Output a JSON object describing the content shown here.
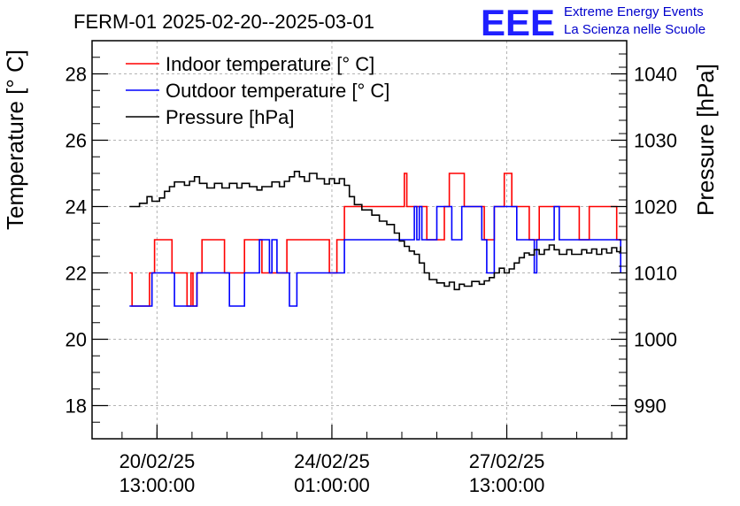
{
  "header": {
    "title": "FERM-01 2025-02-20--2025-03-01",
    "logo_text": "EEE",
    "logo_line1": "Extreme Energy Events",
    "logo_line2": "La Scienza nelle Scuole"
  },
  "chart_data": {
    "type": "line",
    "title": "FERM-01 2025-02-20--2025-03-01",
    "ylabel": "Temperature [° C]",
    "y2label": "Pressure [hPa]",
    "xlabel": "",
    "ylim": [
      17,
      29
    ],
    "y2lim": [
      985,
      1045
    ],
    "xlim_days": [
      -1.3,
      9.4
    ],
    "grid": true,
    "legend_position": "top-left",
    "x_tick_labels": [
      {
        "at_day": 0,
        "line1": "20/02/25",
        "line2": "13:00:00"
      },
      {
        "at_day": 3.5,
        "line1": "24/02/25",
        "line2": "01:00:00"
      },
      {
        "at_day": 7,
        "line1": "27/02/25",
        "line2": "13:00:00"
      }
    ],
    "y_ticks": [
      18,
      20,
      22,
      24,
      26,
      28
    ],
    "y2_ticks": [
      990,
      1000,
      1010,
      1020,
      1030,
      1040
    ],
    "colors": {
      "indoor": "#ff0000",
      "outdoor": "#0000ff",
      "pressure": "#000000",
      "grid": "#b4b4b4"
    },
    "series": [
      {
        "name": "Indoor temperature [° C]",
        "axis": "left",
        "color": "#ff0000",
        "points": [
          [
            -0.55,
            22
          ],
          [
            -0.5,
            22
          ],
          [
            -0.5,
            21
          ],
          [
            -0.15,
            21
          ],
          [
            -0.15,
            22
          ],
          [
            -0.05,
            22
          ],
          [
            -0.05,
            23
          ],
          [
            0.3,
            23
          ],
          [
            0.3,
            22
          ],
          [
            0.6,
            22
          ],
          [
            0.6,
            21
          ],
          [
            0.68,
            21
          ],
          [
            0.68,
            22
          ],
          [
            0.72,
            22
          ],
          [
            0.72,
            21
          ],
          [
            0.8,
            21
          ],
          [
            0.8,
            22
          ],
          [
            0.9,
            22
          ],
          [
            0.9,
            23
          ],
          [
            1.35,
            23
          ],
          [
            1.35,
            22
          ],
          [
            1.75,
            22
          ],
          [
            1.75,
            23
          ],
          [
            2.1,
            23
          ],
          [
            2.1,
            22
          ],
          [
            2.6,
            22
          ],
          [
            2.6,
            23
          ],
          [
            3.45,
            23
          ],
          [
            3.45,
            22
          ],
          [
            3.6,
            22
          ],
          [
            3.6,
            23
          ],
          [
            3.75,
            23
          ],
          [
            3.75,
            24
          ],
          [
            4.95,
            24
          ],
          [
            4.95,
            25
          ],
          [
            5.0,
            25
          ],
          [
            5.0,
            24
          ],
          [
            5.4,
            24
          ],
          [
            5.4,
            23
          ],
          [
            5.75,
            23
          ],
          [
            5.75,
            24
          ],
          [
            5.85,
            24
          ],
          [
            5.85,
            25
          ],
          [
            6.15,
            25
          ],
          [
            6.15,
            24
          ],
          [
            6.55,
            24
          ],
          [
            6.55,
            23
          ],
          [
            6.75,
            23
          ],
          [
            6.75,
            24
          ],
          [
            6.95,
            24
          ],
          [
            6.95,
            25
          ],
          [
            7.1,
            25
          ],
          [
            7.1,
            24
          ],
          [
            7.45,
            24
          ],
          [
            7.45,
            23
          ],
          [
            7.65,
            23
          ],
          [
            7.65,
            24
          ],
          [
            8.45,
            24
          ],
          [
            8.45,
            23
          ],
          [
            8.65,
            23
          ],
          [
            8.65,
            24
          ],
          [
            9.2,
            24
          ],
          [
            9.2,
            23
          ],
          [
            9.28,
            23
          ]
        ]
      },
      {
        "name": "Outdoor temperature [° C]",
        "axis": "left",
        "color": "#0000ff",
        "points": [
          [
            -0.55,
            21
          ],
          [
            -0.1,
            21
          ],
          [
            -0.1,
            22
          ],
          [
            0.35,
            22
          ],
          [
            0.35,
            21
          ],
          [
            0.8,
            21
          ],
          [
            0.8,
            22
          ],
          [
            1.45,
            22
          ],
          [
            1.45,
            21
          ],
          [
            1.75,
            21
          ],
          [
            1.75,
            22
          ],
          [
            2.05,
            22
          ],
          [
            2.05,
            23
          ],
          [
            2.25,
            23
          ],
          [
            2.25,
            22
          ],
          [
            2.3,
            22
          ],
          [
            2.3,
            23
          ],
          [
            2.4,
            23
          ],
          [
            2.4,
            22
          ],
          [
            2.65,
            22
          ],
          [
            2.65,
            21
          ],
          [
            2.8,
            21
          ],
          [
            2.8,
            22
          ],
          [
            3.75,
            22
          ],
          [
            3.75,
            23
          ],
          [
            5.15,
            23
          ],
          [
            5.15,
            24
          ],
          [
            5.2,
            24
          ],
          [
            5.2,
            23
          ],
          [
            5.25,
            23
          ],
          [
            5.25,
            24
          ],
          [
            5.3,
            24
          ],
          [
            5.3,
            23
          ],
          [
            5.6,
            23
          ],
          [
            5.6,
            24
          ],
          [
            5.9,
            24
          ],
          [
            5.9,
            23
          ],
          [
            6.1,
            23
          ],
          [
            6.1,
            24
          ],
          [
            6.5,
            24
          ],
          [
            6.5,
            23
          ],
          [
            6.6,
            23
          ],
          [
            6.6,
            22
          ],
          [
            6.75,
            22
          ],
          [
            6.75,
            24
          ],
          [
            7.2,
            24
          ],
          [
            7.2,
            23
          ],
          [
            7.55,
            23
          ],
          [
            7.55,
            22
          ],
          [
            7.6,
            22
          ],
          [
            7.6,
            23
          ],
          [
            7.95,
            23
          ],
          [
            7.95,
            24
          ],
          [
            8.05,
            24
          ],
          [
            8.05,
            23
          ],
          [
            9.28,
            23
          ],
          [
            9.28,
            22
          ]
        ]
      },
      {
        "name": "Pressure [hPa]",
        "axis": "right",
        "color": "#000000",
        "points": [
          [
            -0.55,
            1020
          ],
          [
            -0.35,
            1020
          ],
          [
            -0.35,
            1020.5
          ],
          [
            -0.2,
            1020.5
          ],
          [
            -0.2,
            1021.5
          ],
          [
            -0.1,
            1021.5
          ],
          [
            -0.1,
            1020.8
          ],
          [
            0.05,
            1020.8
          ],
          [
            0.05,
            1021.3
          ],
          [
            0.15,
            1021.3
          ],
          [
            0.15,
            1022.3
          ],
          [
            0.25,
            1022.3
          ],
          [
            0.25,
            1023
          ],
          [
            0.35,
            1023
          ],
          [
            0.35,
            1023.7
          ],
          [
            0.55,
            1023.7
          ],
          [
            0.55,
            1023.2
          ],
          [
            0.65,
            1023.2
          ],
          [
            0.65,
            1023.8
          ],
          [
            0.75,
            1023.8
          ],
          [
            0.75,
            1024.5
          ],
          [
            0.85,
            1024.5
          ],
          [
            0.85,
            1023.5
          ],
          [
            1.0,
            1023.5
          ],
          [
            1.0,
            1022.8
          ],
          [
            1.15,
            1022.8
          ],
          [
            1.15,
            1023.5
          ],
          [
            1.3,
            1023.5
          ],
          [
            1.3,
            1022.8
          ],
          [
            1.45,
            1022.8
          ],
          [
            1.45,
            1023.5
          ],
          [
            1.6,
            1023.5
          ],
          [
            1.6,
            1022.8
          ],
          [
            1.7,
            1022.8
          ],
          [
            1.7,
            1023.5
          ],
          [
            1.85,
            1023.5
          ],
          [
            1.85,
            1023
          ],
          [
            2.0,
            1023
          ],
          [
            2.0,
            1022.5
          ],
          [
            2.1,
            1022.5
          ],
          [
            2.1,
            1023
          ],
          [
            2.3,
            1023
          ],
          [
            2.3,
            1023.7
          ],
          [
            2.45,
            1023.7
          ],
          [
            2.45,
            1023
          ],
          [
            2.55,
            1023
          ],
          [
            2.55,
            1023.8
          ],
          [
            2.65,
            1023.8
          ],
          [
            2.65,
            1024.5
          ],
          [
            2.75,
            1024.5
          ],
          [
            2.75,
            1025.3
          ],
          [
            2.85,
            1025.3
          ],
          [
            2.85,
            1024.5
          ],
          [
            2.95,
            1024.5
          ],
          [
            2.95,
            1023.8
          ],
          [
            3.05,
            1023.8
          ],
          [
            3.05,
            1025
          ],
          [
            3.2,
            1025
          ],
          [
            3.2,
            1024.2
          ],
          [
            3.35,
            1024.2
          ],
          [
            3.35,
            1023.4
          ],
          [
            3.45,
            1023.4
          ],
          [
            3.45,
            1024.2
          ],
          [
            3.55,
            1024.2
          ],
          [
            3.55,
            1023.5
          ],
          [
            3.65,
            1023.5
          ],
          [
            3.65,
            1024.2
          ],
          [
            3.75,
            1024.2
          ],
          [
            3.75,
            1023.2
          ],
          [
            3.85,
            1023.2
          ],
          [
            3.85,
            1021.5
          ],
          [
            3.95,
            1021.5
          ],
          [
            3.95,
            1020.3
          ],
          [
            4.1,
            1020.3
          ],
          [
            4.1,
            1019.5
          ],
          [
            4.3,
            1019.5
          ],
          [
            4.3,
            1018.7
          ],
          [
            4.45,
            1018.7
          ],
          [
            4.45,
            1017.8
          ],
          [
            4.6,
            1017.8
          ],
          [
            4.6,
            1017.3
          ],
          [
            4.75,
            1017.3
          ],
          [
            4.75,
            1016
          ],
          [
            4.85,
            1016
          ],
          [
            4.85,
            1014.8
          ],
          [
            4.95,
            1014.8
          ],
          [
            4.95,
            1014
          ],
          [
            5.05,
            1014
          ],
          [
            5.05,
            1013.3
          ],
          [
            5.15,
            1013.3
          ],
          [
            5.15,
            1012.8
          ],
          [
            5.25,
            1012.8
          ],
          [
            5.25,
            1011.5
          ],
          [
            5.35,
            1011.5
          ],
          [
            5.35,
            1010
          ],
          [
            5.45,
            1010
          ],
          [
            5.45,
            1009
          ],
          [
            5.6,
            1009
          ],
          [
            5.6,
            1008.5
          ],
          [
            5.75,
            1008.5
          ],
          [
            5.75,
            1008
          ],
          [
            5.85,
            1008
          ],
          [
            5.85,
            1008.6
          ],
          [
            5.95,
            1008.6
          ],
          [
            5.95,
            1007.5
          ],
          [
            6.05,
            1007.5
          ],
          [
            6.05,
            1008.3
          ],
          [
            6.15,
            1008.3
          ],
          [
            6.15,
            1008
          ],
          [
            6.3,
            1008
          ],
          [
            6.3,
            1008.7
          ],
          [
            6.45,
            1008.7
          ],
          [
            6.45,
            1008.3
          ],
          [
            6.55,
            1008.3
          ],
          [
            6.55,
            1008.8
          ],
          [
            6.65,
            1008.8
          ],
          [
            6.65,
            1009.3
          ],
          [
            6.75,
            1009.3
          ],
          [
            6.75,
            1010
          ],
          [
            6.85,
            1010
          ],
          [
            6.85,
            1010.7
          ],
          [
            6.95,
            1010.7
          ],
          [
            6.95,
            1010
          ],
          [
            7.05,
            1010
          ],
          [
            7.05,
            1010.6
          ],
          [
            7.15,
            1010.6
          ],
          [
            7.15,
            1011.5
          ],
          [
            7.25,
            1011.5
          ],
          [
            7.25,
            1012.3
          ],
          [
            7.35,
            1012.3
          ],
          [
            7.35,
            1013
          ],
          [
            7.45,
            1013
          ],
          [
            7.45,
            1012.7
          ],
          [
            7.55,
            1012.7
          ],
          [
            7.55,
            1013.5
          ],
          [
            7.65,
            1013.5
          ],
          [
            7.65,
            1012.8
          ],
          [
            7.75,
            1012.8
          ],
          [
            7.75,
            1013.5
          ],
          [
            7.85,
            1013.5
          ],
          [
            7.85,
            1014.2
          ],
          [
            7.95,
            1014.2
          ],
          [
            7.95,
            1013.5
          ],
          [
            8.05,
            1013.5
          ],
          [
            8.05,
            1012.8
          ],
          [
            8.2,
            1012.8
          ],
          [
            8.2,
            1013.5
          ],
          [
            8.3,
            1013.5
          ],
          [
            8.3,
            1012.8
          ],
          [
            8.5,
            1012.8
          ],
          [
            8.5,
            1013.5
          ],
          [
            8.6,
            1013.5
          ],
          [
            8.6,
            1013
          ],
          [
            8.7,
            1013
          ],
          [
            8.7,
            1013.6
          ],
          [
            8.8,
            1013.6
          ],
          [
            8.8,
            1012.8
          ],
          [
            8.9,
            1012.8
          ],
          [
            8.9,
            1013.6
          ],
          [
            9.0,
            1013.6
          ],
          [
            9.0,
            1013
          ],
          [
            9.1,
            1013
          ],
          [
            9.1,
            1013.8
          ],
          [
            9.2,
            1013.8
          ],
          [
            9.2,
            1013.2
          ],
          [
            9.28,
            1013.2
          ],
          [
            9.28,
            1014
          ]
        ]
      }
    ]
  }
}
